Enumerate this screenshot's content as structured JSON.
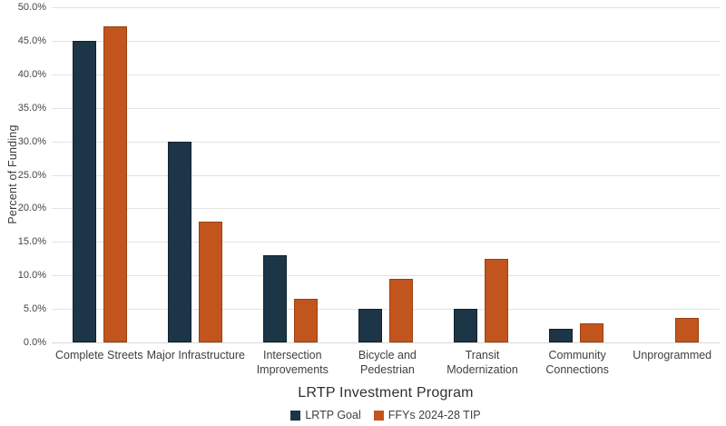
{
  "chart_data": {
    "type": "bar",
    "title": "",
    "xlabel": "LRTP Investment Program",
    "ylabel": "Percent of Funding",
    "ylim": [
      0,
      50
    ],
    "ytick_step": 5,
    "ytick_format": "one_decimal_percent",
    "grid": true,
    "legend_position": "bottom",
    "categories": [
      "Complete Streets",
      "Major Infrastructure",
      "Intersection\nImprovements",
      "Bicycle and\nPedestrian",
      "Transit\nModernization",
      "Community\nConnections",
      "Unprogrammed"
    ],
    "series": [
      {
        "name": "LRTP Goal",
        "color": "#1c3547",
        "border_color": "#10222f",
        "values": [
          45.0,
          30.0,
          13.0,
          5.0,
          5.0,
          2.0,
          0.0
        ]
      },
      {
        "name": "FFYs 2024-28 TIP",
        "color": "#c2551e",
        "border_color": "#9a400f",
        "values": [
          47.2,
          18.0,
          6.5,
          9.5,
          12.5,
          2.8,
          3.7
        ]
      }
    ]
  },
  "colors": {
    "gridline": "#e3e3e3",
    "axis_line": "#d6d6d6",
    "tick_text": "#444444",
    "label_text": "#3f3f3f",
    "title_text": "#303030"
  }
}
